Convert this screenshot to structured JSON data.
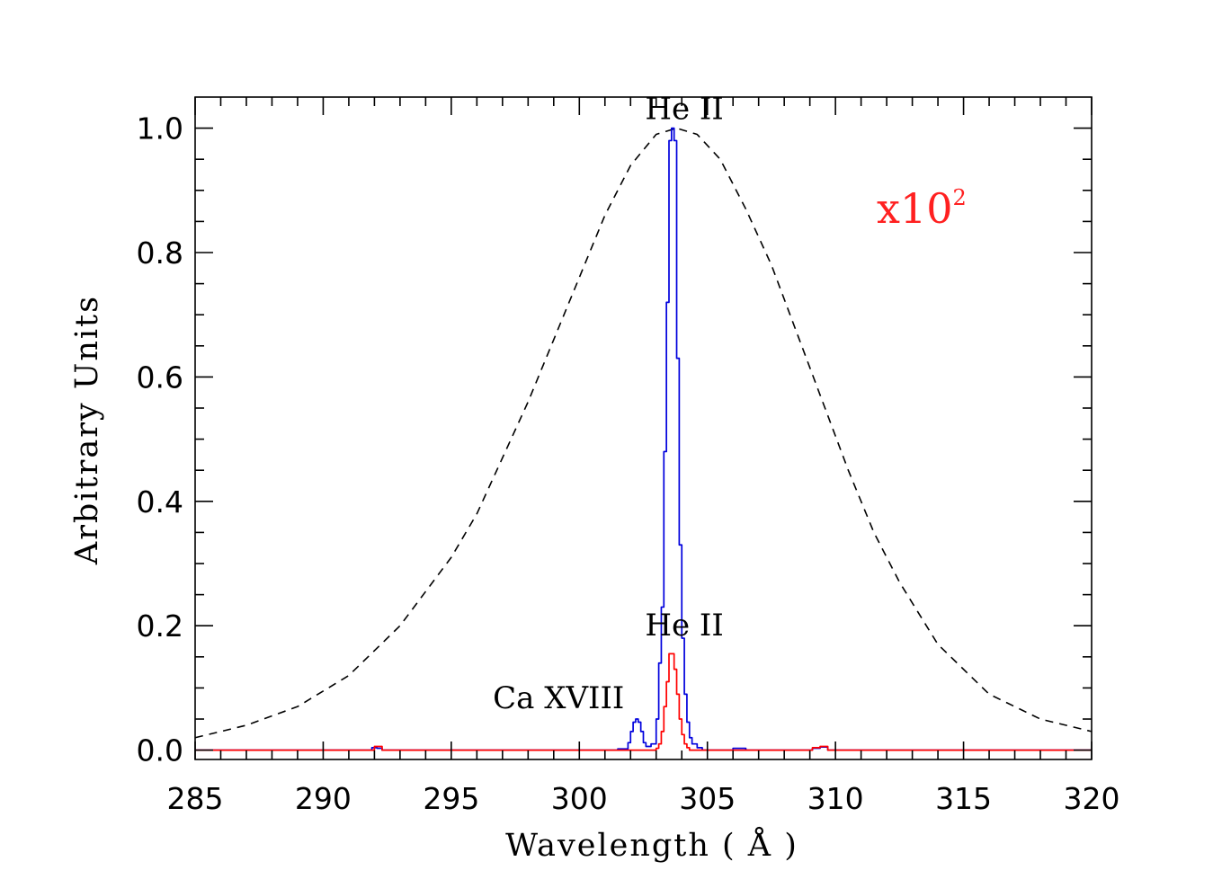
{
  "chart_data": {
    "type": "line",
    "xlabel": "Wavelength ( Å )",
    "ylabel": "Arbitrary Units",
    "xlim": [
      285,
      320
    ],
    "ylim": [
      -0.015,
      1.05
    ],
    "xticks": [
      285,
      290,
      295,
      300,
      305,
      310,
      315,
      320
    ],
    "xtick_labels": [
      "285",
      "290",
      "295",
      "300",
      "305",
      "310",
      "315",
      "320"
    ],
    "yticks": [
      0.0,
      0.2,
      0.4,
      0.6,
      0.8,
      1.0
    ],
    "ytick_labels": [
      "0.0",
      "0.2",
      "0.4",
      "0.6",
      "0.8",
      "1.0"
    ],
    "grid": false,
    "annotations": [
      {
        "text": "He II",
        "x": 304.1,
        "y": 1.0
      },
      {
        "text": "He II",
        "x": 304.1,
        "y": 0.17
      },
      {
        "text": "Ca XVIII",
        "x": 302.0,
        "y": 0.053
      }
    ],
    "scale_note": {
      "base": "x10",
      "exponent": "2",
      "color": "#ff2020"
    },
    "series": [
      {
        "style": "dashed",
        "color": "#000000",
        "x": [
          285,
          287,
          289,
          291,
          293,
          295,
          296,
          297,
          298,
          299,
          300,
          301,
          302,
          303,
          303.8,
          304.6,
          305.5,
          306.5,
          307.5,
          308.5,
          309.5,
          310.5,
          311.5,
          312.5,
          314,
          316,
          318,
          320
        ],
        "y": [
          0.02,
          0.04,
          0.07,
          0.12,
          0.2,
          0.31,
          0.38,
          0.47,
          0.56,
          0.66,
          0.76,
          0.86,
          0.94,
          0.99,
          1.0,
          0.99,
          0.95,
          0.87,
          0.78,
          0.67,
          0.56,
          0.45,
          0.35,
          0.27,
          0.17,
          0.09,
          0.05,
          0.03
        ]
      },
      {
        "style": "step",
        "color": "#0000dd",
        "x": [
          285,
          291.7,
          291.9,
          292.1,
          292.3,
          295,
          300,
          301.5,
          301.9,
          302.0,
          302.1,
          302.2,
          302.3,
          302.4,
          302.5,
          302.6,
          302.8,
          303.0,
          303.1,
          303.2,
          303.3,
          303.4,
          303.5,
          303.6,
          303.7,
          303.8,
          303.9,
          304.0,
          304.1,
          304.2,
          304.3,
          304.4,
          304.6,
          304.8,
          305.5,
          306,
          306.5,
          308.8,
          309.1,
          309.4,
          309.7,
          320
        ],
        "y": [
          0.0,
          0.0,
          0.004,
          0.003,
          0.0,
          0.0,
          0.0,
          0.002,
          0.012,
          0.03,
          0.045,
          0.05,
          0.045,
          0.03,
          0.012,
          0.006,
          0.01,
          0.05,
          0.14,
          0.23,
          0.48,
          0.72,
          0.98,
          1.0,
          0.98,
          0.63,
          0.33,
          0.18,
          0.09,
          0.045,
          0.02,
          0.01,
          0.004,
          0.0,
          0.0,
          0.003,
          0.0,
          0.0,
          0.003,
          0.005,
          0.0,
          0.0
        ]
      },
      {
        "style": "step",
        "color": "#ff0000",
        "x": [
          285,
          291.7,
          292.0,
          292.3,
          300,
          303.0,
          303.1,
          303.2,
          303.3,
          303.4,
          303.5,
          303.6,
          303.7,
          303.8,
          303.9,
          304.0,
          304.1,
          304.2,
          304.3,
          304.5,
          308.8,
          309.1,
          309.4,
          309.7,
          320
        ],
        "y": [
          0.0,
          0.0,
          0.006,
          0.0,
          0.0,
          0.003,
          0.01,
          0.03,
          0.07,
          0.11,
          0.155,
          0.155,
          0.13,
          0.09,
          0.05,
          0.025,
          0.01,
          0.004,
          0.0,
          0.0,
          0.0,
          0.004,
          0.006,
          0.0,
          0.0
        ]
      }
    ]
  }
}
